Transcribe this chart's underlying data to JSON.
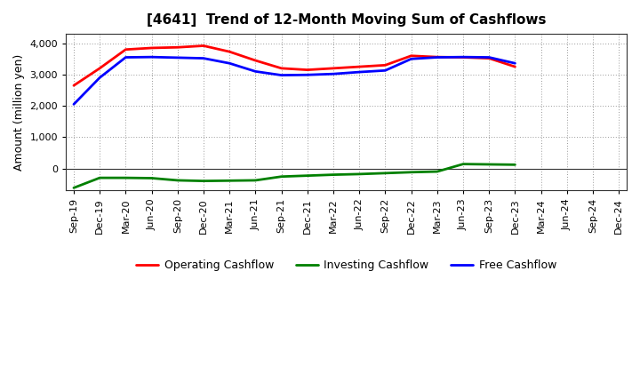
{
  "title": "[4641]  Trend of 12-Month Moving Sum of Cashflows",
  "ylabel": "Amount (million yen)",
  "xlabels": [
    "Sep-19",
    "Dec-19",
    "Mar-20",
    "Jun-20",
    "Sep-20",
    "Dec-20",
    "Mar-21",
    "Jun-21",
    "Sep-21",
    "Dec-21",
    "Mar-22",
    "Jun-22",
    "Sep-22",
    "Dec-22",
    "Mar-23",
    "Jun-23",
    "Sep-23",
    "Dec-23",
    "Mar-24",
    "Jun-24",
    "Sep-24",
    "Dec-24"
  ],
  "operating_cashflow": [
    2650,
    3200,
    3800,
    3850,
    3870,
    3920,
    3730,
    3450,
    3200,
    3150,
    3200,
    3250,
    3300,
    3600,
    3560,
    3550,
    3520,
    3250,
    null,
    null,
    null,
    null
  ],
  "investing_cashflow": [
    -620,
    -300,
    -300,
    -310,
    -380,
    -400,
    -390,
    -380,
    -260,
    -230,
    -200,
    -180,
    -150,
    -120,
    -100,
    140,
    130,
    120,
    null,
    null,
    null,
    null
  ],
  "free_cashflow": [
    2050,
    2900,
    3550,
    3560,
    3540,
    3520,
    3360,
    3100,
    2980,
    2990,
    3020,
    3080,
    3130,
    3500,
    3550,
    3560,
    3550,
    3360,
    null,
    null,
    null,
    null
  ],
  "ylim": [
    -700,
    4300
  ],
  "yticks": [
    0,
    1000,
    2000,
    3000,
    4000
  ],
  "operating_color": "#ff0000",
  "investing_color": "#008000",
  "free_color": "#0000ff",
  "bg_color": "#ffffff",
  "plot_bg_color": "#ffffff",
  "grid_color": "#999999",
  "linewidth": 2.0,
  "title_fontsize": 11,
  "label_fontsize": 9,
  "tick_fontsize": 8,
  "legend_fontsize": 9
}
